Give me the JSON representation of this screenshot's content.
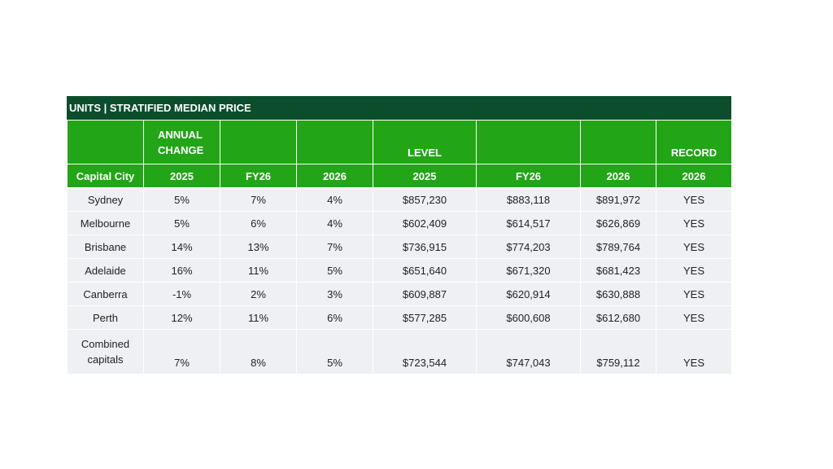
{
  "title": "UNITS | STRATIFIED MEDIAN PRICE",
  "header_groups": {
    "annual_change": "ANNUAL CHANGE",
    "level": "LEVEL",
    "record": "RECORD"
  },
  "columns": [
    "Capital City",
    "2025",
    "FY26",
    "2026",
    "2025",
    "FY26",
    "2026",
    "2026"
  ],
  "rows": [
    [
      "Sydney",
      "5%",
      "7%",
      "4%",
      "$857,230",
      "$883,118",
      "$891,972",
      "YES"
    ],
    [
      "Melbourne",
      "5%",
      "6%",
      "4%",
      "$602,409",
      "$614,517",
      "$626,869",
      "YES"
    ],
    [
      "Brisbane",
      "14%",
      "13%",
      "7%",
      "$736,915",
      "$774,203",
      "$789,764",
      "YES"
    ],
    [
      "Adelaide",
      "16%",
      "11%",
      "5%",
      "$651,640",
      "$671,320",
      "$681,423",
      "YES"
    ],
    [
      "Canberra",
      "-1%",
      "2%",
      "3%",
      "$609,887",
      "$620,914",
      "$630,888",
      "YES"
    ],
    [
      "Perth",
      "12%",
      "11%",
      "6%",
      "$577,285",
      "$600,608",
      "$612,680",
      "YES"
    ],
    [
      "Combined capitals",
      "7%",
      "8%",
      "5%",
      "$723,544",
      "$747,043",
      "$759,112",
      "YES"
    ]
  ],
  "colors": {
    "title_bg": "#0b4d2c",
    "header_bg": "#22a517",
    "row_bg": "#eef0f3"
  }
}
